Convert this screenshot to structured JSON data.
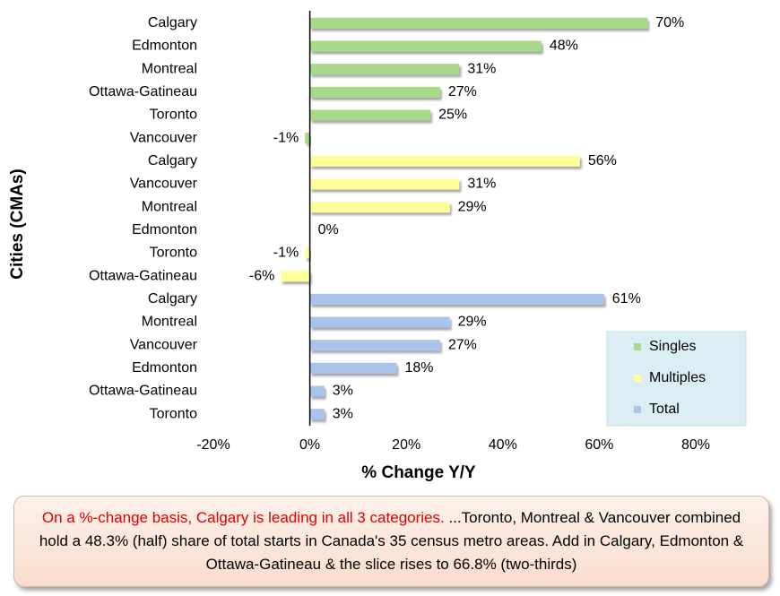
{
  "chart_data": {
    "type": "hbar",
    "xlabel": "% Change Y/Y",
    "ylabel": "Cities (CMAs)",
    "categories": [
      "Calgary",
      "Edmonton",
      "Montreal",
      "Ottawa-Gatineau",
      "Toronto",
      "Vancouver",
      "Calgary",
      "Vancouver",
      "Montreal",
      "Edmonton",
      "Toronto",
      "Ottawa-Gatineau",
      "Calgary",
      "Montreal",
      "Vancouver",
      "Edmonton",
      "Ottawa-Gatineau",
      "Toronto"
    ],
    "series": [
      {
        "name": "Singles",
        "color": "#a6d98a",
        "values": [
          70,
          48,
          31,
          27,
          25,
          -1,
          null,
          null,
          null,
          null,
          null,
          null,
          null,
          null,
          null,
          null,
          null,
          null
        ],
        "value_labels": [
          "70%",
          "48%",
          "31%",
          "27%",
          "25%",
          "-1%",
          null,
          null,
          null,
          null,
          null,
          null,
          null,
          null,
          null,
          null,
          null,
          null
        ]
      },
      {
        "name": "Multiples",
        "color": "#ffff99",
        "values": [
          null,
          null,
          null,
          null,
          null,
          null,
          56,
          31,
          29,
          0,
          -1,
          -6,
          null,
          null,
          null,
          null,
          null,
          null
        ],
        "value_labels": [
          null,
          null,
          null,
          null,
          null,
          null,
          "56%",
          "31%",
          "29%",
          "0%",
          "-1%",
          "-6%",
          null,
          null,
          null,
          null,
          null,
          null
        ]
      },
      {
        "name": "Total",
        "color": "#a9c4ea",
        "values": [
          null,
          null,
          null,
          null,
          null,
          null,
          null,
          null,
          null,
          null,
          null,
          null,
          61,
          29,
          27,
          18,
          3,
          3
        ],
        "value_labels": [
          null,
          null,
          null,
          null,
          null,
          null,
          null,
          null,
          null,
          null,
          null,
          null,
          "61%",
          "29%",
          "27%",
          "18%",
          "3%",
          "3%"
        ]
      }
    ],
    "xlim": [
      -20,
      80
    ],
    "xticks": [
      {
        "value": -20,
        "label": "-20%"
      },
      {
        "value": 0,
        "label": "0%"
      },
      {
        "value": 20,
        "label": "20%"
      },
      {
        "value": 40,
        "label": "40%"
      },
      {
        "value": 60,
        "label": "60%"
      },
      {
        "value": 80,
        "label": "80%"
      }
    ],
    "legend": "bottom-right"
  },
  "note": {
    "highlight": "On a %-change basis, Calgary is leading in all 3 categories.",
    "text": " ...Toronto, Montreal & Vancouver combined hold a 48.3% (half) share of total starts in Canada's 35 census metro areas. Add in Calgary, Edmonton & Ottawa-Gatineau & the slice rises to 66.8% (two-thirds)"
  }
}
